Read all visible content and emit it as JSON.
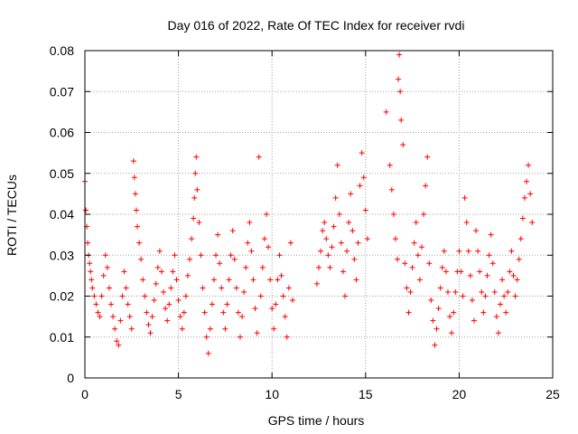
{
  "chart_data": {
    "type": "scatter",
    "title": "Day 016 of 2022, Rate Of TEC Index for receiver rvdi",
    "xlabel": "GPS time / hours",
    "ylabel": "ROTI / TECUs",
    "xlim": [
      0,
      25
    ],
    "ylim": [
      0,
      0.08
    ],
    "x_ticks": [
      0,
      5,
      10,
      15,
      20,
      25
    ],
    "x_tick_labels": [
      "0",
      "5",
      "10",
      "15",
      "20",
      "25"
    ],
    "y_ticks": [
      0,
      0.01,
      0.02,
      0.03,
      0.04,
      0.05,
      0.06,
      0.07,
      0.08
    ],
    "y_tick_labels": [
      "0",
      "0.01",
      "0.02",
      "0.03",
      "0.04",
      "0.05",
      "0.06",
      "0.07",
      "0.08"
    ],
    "grid": true,
    "marker": "+",
    "color": "#ff0000",
    "series": [
      {
        "points": [
          [
            0.0,
            0.048
          ],
          [
            0.05,
            0.041
          ],
          [
            0.1,
            0.037
          ],
          [
            0.15,
            0.033
          ],
          [
            0.2,
            0.03
          ],
          [
            0.25,
            0.028
          ],
          [
            0.3,
            0.026
          ],
          [
            0.35,
            0.024
          ],
          [
            0.4,
            0.022
          ],
          [
            0.5,
            0.02
          ],
          [
            0.6,
            0.018
          ],
          [
            0.7,
            0.016
          ],
          [
            0.8,
            0.015
          ],
          [
            0.9,
            0.02
          ],
          [
            1.0,
            0.025
          ],
          [
            1.1,
            0.03
          ],
          [
            1.2,
            0.027
          ],
          [
            1.3,
            0.022
          ],
          [
            1.4,
            0.018
          ],
          [
            1.5,
            0.015
          ],
          [
            1.6,
            0.012
          ],
          [
            1.7,
            0.009
          ],
          [
            1.8,
            0.008
          ],
          [
            1.9,
            0.014
          ],
          [
            2.0,
            0.02
          ],
          [
            2.1,
            0.026
          ],
          [
            2.2,
            0.022
          ],
          [
            2.3,
            0.018
          ],
          [
            2.4,
            0.015
          ],
          [
            2.5,
            0.012
          ],
          [
            2.6,
            0.053
          ],
          [
            2.65,
            0.049
          ],
          [
            2.7,
            0.045
          ],
          [
            2.75,
            0.041
          ],
          [
            2.8,
            0.037
          ],
          [
            2.9,
            0.033
          ],
          [
            3.0,
            0.029
          ],
          [
            3.1,
            0.024
          ],
          [
            3.2,
            0.02
          ],
          [
            3.3,
            0.016
          ],
          [
            3.4,
            0.013
          ],
          [
            3.5,
            0.011
          ],
          [
            3.6,
            0.015
          ],
          [
            3.7,
            0.019
          ],
          [
            3.8,
            0.023
          ],
          [
            3.9,
            0.027
          ],
          [
            4.0,
            0.031
          ],
          [
            4.1,
            0.026
          ],
          [
            4.2,
            0.021
          ],
          [
            4.3,
            0.017
          ],
          [
            4.4,
            0.014
          ],
          [
            4.5,
            0.018
          ],
          [
            4.6,
            0.022
          ],
          [
            4.7,
            0.026
          ],
          [
            4.8,
            0.03
          ],
          [
            4.9,
            0.024
          ],
          [
            5.0,
            0.019
          ],
          [
            5.1,
            0.015
          ],
          [
            5.2,
            0.012
          ],
          [
            5.3,
            0.016
          ],
          [
            5.4,
            0.02
          ],
          [
            5.5,
            0.025
          ],
          [
            5.6,
            0.029
          ],
          [
            5.7,
            0.034
          ],
          [
            5.8,
            0.039
          ],
          [
            5.85,
            0.044
          ],
          [
            5.9,
            0.05
          ],
          [
            5.95,
            0.054
          ],
          [
            6.0,
            0.046
          ],
          [
            6.1,
            0.038
          ],
          [
            6.2,
            0.03
          ],
          [
            6.3,
            0.022
          ],
          [
            6.4,
            0.016
          ],
          [
            6.5,
            0.01
          ],
          [
            6.6,
            0.006
          ],
          [
            6.7,
            0.012
          ],
          [
            6.8,
            0.018
          ],
          [
            6.9,
            0.024
          ],
          [
            7.0,
            0.03
          ],
          [
            7.1,
            0.035
          ],
          [
            7.2,
            0.028
          ],
          [
            7.3,
            0.022
          ],
          [
            7.4,
            0.016
          ],
          [
            7.5,
            0.012
          ],
          [
            7.6,
            0.018
          ],
          [
            7.7,
            0.024
          ],
          [
            7.8,
            0.03
          ],
          [
            7.9,
            0.036
          ],
          [
            8.0,
            0.029
          ],
          [
            8.1,
            0.022
          ],
          [
            8.2,
            0.016
          ],
          [
            8.3,
            0.01
          ],
          [
            8.4,
            0.015
          ],
          [
            8.5,
            0.021
          ],
          [
            8.6,
            0.027
          ],
          [
            8.7,
            0.033
          ],
          [
            8.8,
            0.038
          ],
          [
            8.9,
            0.031
          ],
          [
            9.0,
            0.024
          ],
          [
            9.1,
            0.017
          ],
          [
            9.2,
            0.011
          ],
          [
            9.3,
            0.054
          ],
          [
            9.4,
            0.02
          ],
          [
            9.5,
            0.027
          ],
          [
            9.6,
            0.034
          ],
          [
            9.7,
            0.04
          ],
          [
            9.8,
            0.032
          ],
          [
            9.9,
            0.024
          ],
          [
            10.0,
            0.017
          ],
          [
            10.1,
            0.012
          ],
          [
            10.2,
            0.018
          ],
          [
            10.3,
            0.024
          ],
          [
            10.4,
            0.03
          ],
          [
            10.5,
            0.025
          ],
          [
            10.6,
            0.02
          ],
          [
            10.7,
            0.015
          ],
          [
            10.8,
            0.01
          ],
          [
            10.9,
            0.022
          ],
          [
            11.0,
            0.033
          ],
          [
            11.1,
            0.019
          ],
          [
            12.4,
            0.023
          ],
          [
            12.5,
            0.027
          ],
          [
            12.6,
            0.031
          ],
          [
            12.7,
            0.036
          ],
          [
            12.8,
            0.038
          ],
          [
            12.9,
            0.034
          ],
          [
            13.0,
            0.03
          ],
          [
            13.1,
            0.027
          ],
          [
            13.2,
            0.032
          ],
          [
            13.3,
            0.037
          ],
          [
            13.4,
            0.044
          ],
          [
            13.5,
            0.052
          ],
          [
            13.6,
            0.04
          ],
          [
            13.7,
            0.033
          ],
          [
            13.8,
            0.026
          ],
          [
            13.9,
            0.02
          ],
          [
            14.0,
            0.031
          ],
          [
            14.1,
            0.038
          ],
          [
            14.2,
            0.045
          ],
          [
            14.3,
            0.036
          ],
          [
            14.4,
            0.029
          ],
          [
            14.5,
            0.024
          ],
          [
            14.6,
            0.033
          ],
          [
            14.7,
            0.047
          ],
          [
            14.8,
            0.055
          ],
          [
            14.9,
            0.049
          ],
          [
            15.0,
            0.041
          ],
          [
            15.1,
            0.034
          ],
          [
            16.1,
            0.065
          ],
          [
            16.3,
            0.052
          ],
          [
            16.4,
            0.046
          ],
          [
            16.5,
            0.04
          ],
          [
            16.6,
            0.034
          ],
          [
            16.7,
            0.029
          ],
          [
            16.75,
            0.073
          ],
          [
            16.8,
            0.079
          ],
          [
            16.85,
            0.07
          ],
          [
            16.9,
            0.063
          ],
          [
            17.0,
            0.057
          ],
          [
            17.1,
            0.028
          ],
          [
            17.2,
            0.022
          ],
          [
            17.3,
            0.016
          ],
          [
            17.4,
            0.021
          ],
          [
            17.5,
            0.027
          ],
          [
            17.6,
            0.033
          ],
          [
            17.7,
            0.038
          ],
          [
            17.8,
            0.03
          ],
          [
            17.9,
            0.024
          ],
          [
            18.0,
            0.032
          ],
          [
            18.1,
            0.04
          ],
          [
            18.2,
            0.047
          ],
          [
            18.3,
            0.054
          ],
          [
            18.4,
            0.028
          ],
          [
            18.5,
            0.019
          ],
          [
            18.6,
            0.014
          ],
          [
            18.7,
            0.008
          ],
          [
            18.8,
            0.012
          ],
          [
            18.9,
            0.017
          ],
          [
            19.0,
            0.022
          ],
          [
            19.1,
            0.027
          ],
          [
            19.2,
            0.031
          ],
          [
            19.3,
            0.026
          ],
          [
            19.4,
            0.021
          ],
          [
            19.5,
            0.015
          ],
          [
            19.6,
            0.011
          ],
          [
            19.7,
            0.016
          ],
          [
            19.8,
            0.021
          ],
          [
            19.9,
            0.026
          ],
          [
            20.0,
            0.031
          ],
          [
            20.1,
            0.026
          ],
          [
            20.2,
            0.02
          ],
          [
            20.3,
            0.044
          ],
          [
            20.4,
            0.038
          ],
          [
            20.5,
            0.031
          ],
          [
            20.6,
            0.025
          ],
          [
            20.7,
            0.019
          ],
          [
            20.8,
            0.014
          ],
          [
            20.9,
            0.036
          ],
          [
            21.0,
            0.031
          ],
          [
            21.1,
            0.026
          ],
          [
            21.2,
            0.021
          ],
          [
            21.3,
            0.016
          ],
          [
            21.4,
            0.02
          ],
          [
            21.5,
            0.025
          ],
          [
            21.6,
            0.03
          ],
          [
            21.7,
            0.035
          ],
          [
            21.8,
            0.028
          ],
          [
            21.9,
            0.021
          ],
          [
            22.0,
            0.015
          ],
          [
            22.1,
            0.011
          ],
          [
            22.2,
            0.018
          ],
          [
            22.3,
            0.024
          ],
          [
            22.4,
            0.02
          ],
          [
            22.5,
            0.016
          ],
          [
            22.6,
            0.021
          ],
          [
            22.7,
            0.026
          ],
          [
            22.8,
            0.031
          ],
          [
            22.9,
            0.025
          ],
          [
            23.0,
            0.02
          ],
          [
            23.1,
            0.024
          ],
          [
            23.2,
            0.029
          ],
          [
            23.3,
            0.034
          ],
          [
            23.4,
            0.039
          ],
          [
            23.5,
            0.044
          ],
          [
            23.6,
            0.048
          ],
          [
            23.7,
            0.052
          ],
          [
            23.8,
            0.045
          ],
          [
            23.9,
            0.038
          ]
        ]
      }
    ]
  }
}
